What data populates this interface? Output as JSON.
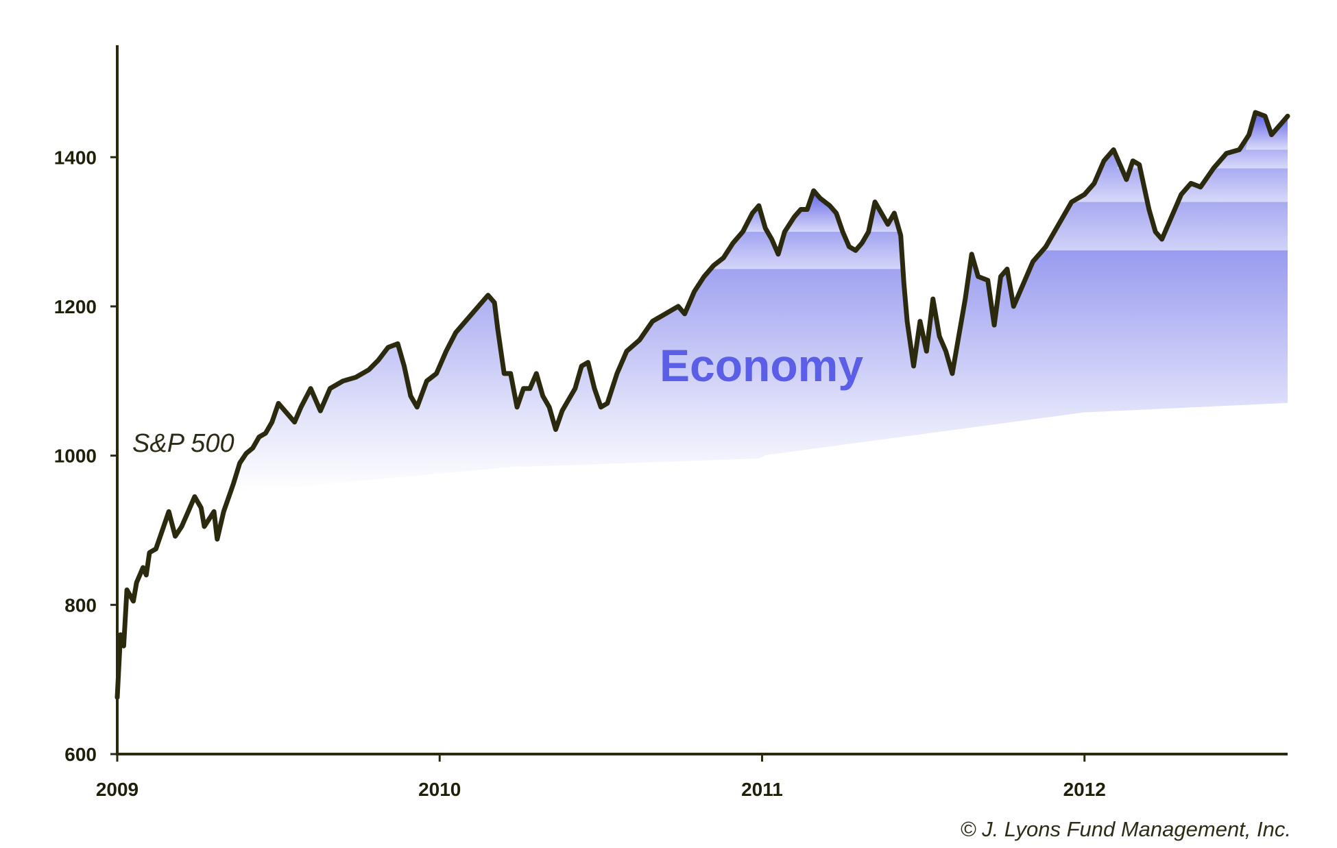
{
  "chart_data": {
    "type": "line",
    "title": "",
    "xlabel": "",
    "ylabel": "",
    "xlim": [
      2009.0,
      2012.63
    ],
    "ylim": [
      600,
      1550
    ],
    "x_ticks": [
      "2009",
      "2010",
      "2011",
      "2012"
    ],
    "y_ticks": [
      "600",
      "800",
      "1000",
      "1200",
      "1400"
    ],
    "grid": false,
    "legend": "none",
    "series": [
      {
        "name": "S&P 500",
        "color": "#2b2a0e",
        "points": [
          [
            2009.0,
            676
          ],
          [
            2009.01,
            760
          ],
          [
            2009.02,
            745
          ],
          [
            2009.03,
            820
          ],
          [
            2009.05,
            805
          ],
          [
            2009.06,
            830
          ],
          [
            2009.08,
            850
          ],
          [
            2009.09,
            840
          ],
          [
            2009.1,
            870
          ],
          [
            2009.12,
            875
          ],
          [
            2009.14,
            900
          ],
          [
            2009.16,
            925
          ],
          [
            2009.18,
            892
          ],
          [
            2009.2,
            905
          ],
          [
            2009.22,
            925
          ],
          [
            2009.24,
            945
          ],
          [
            2009.26,
            930
          ],
          [
            2009.27,
            905
          ],
          [
            2009.3,
            925
          ],
          [
            2009.31,
            888
          ],
          [
            2009.33,
            925
          ],
          [
            2009.36,
            962
          ],
          [
            2009.38,
            990
          ],
          [
            2009.4,
            1003
          ],
          [
            2009.42,
            1010
          ],
          [
            2009.44,
            1025
          ],
          [
            2009.46,
            1030
          ],
          [
            2009.48,
            1045
          ],
          [
            2009.5,
            1070
          ],
          [
            2009.52,
            1060
          ],
          [
            2009.55,
            1045
          ],
          [
            2009.57,
            1065
          ],
          [
            2009.6,
            1090
          ],
          [
            2009.63,
            1060
          ],
          [
            2009.66,
            1090
          ],
          [
            2009.7,
            1100
          ],
          [
            2009.74,
            1105
          ],
          [
            2009.78,
            1115
          ],
          [
            2009.81,
            1128
          ],
          [
            2009.84,
            1145
          ],
          [
            2009.87,
            1150
          ],
          [
            2009.89,
            1120
          ],
          [
            2009.91,
            1080
          ],
          [
            2009.93,
            1065
          ],
          [
            2009.96,
            1100
          ],
          [
            2009.99,
            1110
          ],
          [
            2010.02,
            1140
          ],
          [
            2010.05,
            1165
          ],
          [
            2010.08,
            1180
          ],
          [
            2010.1,
            1190
          ],
          [
            2010.13,
            1205
          ],
          [
            2010.15,
            1215
          ],
          [
            2010.17,
            1205
          ],
          [
            2010.18,
            1170
          ],
          [
            2010.2,
            1110
          ],
          [
            2010.22,
            1110
          ],
          [
            2010.24,
            1065
          ],
          [
            2010.26,
            1090
          ],
          [
            2010.28,
            1090
          ],
          [
            2010.3,
            1110
          ],
          [
            2010.32,
            1080
          ],
          [
            2010.34,
            1065
          ],
          [
            2010.36,
            1035
          ],
          [
            2010.38,
            1060
          ],
          [
            2010.4,
            1075
          ],
          [
            2010.42,
            1090
          ],
          [
            2010.44,
            1120
          ],
          [
            2010.46,
            1125
          ],
          [
            2010.48,
            1090
          ],
          [
            2010.5,
            1065
          ],
          [
            2010.52,
            1070
          ],
          [
            2010.55,
            1110
          ],
          [
            2010.58,
            1140
          ],
          [
            2010.62,
            1155
          ],
          [
            2010.66,
            1180
          ],
          [
            2010.7,
            1190
          ],
          [
            2010.74,
            1200
          ],
          [
            2010.76,
            1190
          ],
          [
            2010.79,
            1220
          ],
          [
            2010.82,
            1240
          ],
          [
            2010.85,
            1255
          ],
          [
            2010.88,
            1265
          ],
          [
            2010.91,
            1285
          ],
          [
            2010.94,
            1300
          ],
          [
            2010.97,
            1325
          ],
          [
            2010.99,
            1335
          ],
          [
            2011.01,
            1305
          ],
          [
            2011.03,
            1290
          ],
          [
            2011.05,
            1270
          ],
          [
            2011.07,
            1300
          ],
          [
            2011.1,
            1320
          ],
          [
            2011.12,
            1330
          ],
          [
            2011.14,
            1330
          ],
          [
            2011.16,
            1355
          ],
          [
            2011.18,
            1345
          ],
          [
            2011.21,
            1335
          ],
          [
            2011.23,
            1325
          ],
          [
            2011.25,
            1300
          ],
          [
            2011.27,
            1280
          ],
          [
            2011.29,
            1275
          ],
          [
            2011.31,
            1285
          ],
          [
            2011.33,
            1300
          ],
          [
            2011.35,
            1340
          ],
          [
            2011.37,
            1325
          ],
          [
            2011.39,
            1310
          ],
          [
            2011.41,
            1325
          ],
          [
            2011.43,
            1295
          ],
          [
            2011.44,
            1230
          ],
          [
            2011.45,
            1180
          ],
          [
            2011.47,
            1120
          ],
          [
            2011.49,
            1180
          ],
          [
            2011.51,
            1140
          ],
          [
            2011.53,
            1210
          ],
          [
            2011.55,
            1160
          ],
          [
            2011.57,
            1140
          ],
          [
            2011.59,
            1110
          ],
          [
            2011.61,
            1160
          ],
          [
            2011.63,
            1210
          ],
          [
            2011.65,
            1270
          ],
          [
            2011.67,
            1240
          ],
          [
            2011.7,
            1235
          ],
          [
            2011.72,
            1175
          ],
          [
            2011.74,
            1240
          ],
          [
            2011.76,
            1250
          ],
          [
            2011.78,
            1200
          ],
          [
            2011.81,
            1230
          ],
          [
            2011.84,
            1260
          ],
          [
            2011.88,
            1280
          ],
          [
            2011.92,
            1310
          ],
          [
            2011.96,
            1340
          ],
          [
            2012.0,
            1350
          ],
          [
            2012.03,
            1365
          ],
          [
            2012.06,
            1395
          ],
          [
            2012.09,
            1410
          ],
          [
            2012.11,
            1390
          ],
          [
            2012.13,
            1370
          ],
          [
            2012.15,
            1395
          ],
          [
            2012.17,
            1390
          ],
          [
            2012.18,
            1370
          ],
          [
            2012.2,
            1330
          ],
          [
            2012.22,
            1300
          ],
          [
            2012.24,
            1290
          ],
          [
            2012.27,
            1320
          ],
          [
            2012.3,
            1350
          ],
          [
            2012.33,
            1365
          ],
          [
            2012.36,
            1360
          ],
          [
            2012.4,
            1385
          ],
          [
            2012.44,
            1405
          ],
          [
            2012.48,
            1410
          ],
          [
            2012.51,
            1430
          ],
          [
            2012.53,
            1460
          ],
          [
            2012.56,
            1455
          ],
          [
            2012.58,
            1430
          ],
          [
            2012.61,
            1445
          ],
          [
            2012.63,
            1455
          ]
        ]
      }
    ],
    "shaded_region": {
      "label": "Economy",
      "color": "#5b5ee6"
    },
    "annotations": [
      {
        "text": "S&P 500"
      },
      {
        "text": "Economy"
      },
      {
        "text": "© J. Lyons Fund Management, Inc."
      }
    ]
  }
}
